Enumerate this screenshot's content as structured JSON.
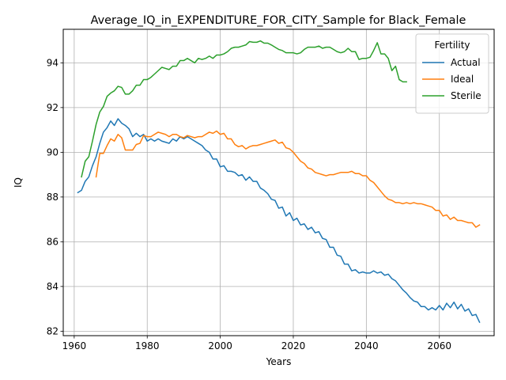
{
  "chart_data": {
    "type": "line",
    "title": "Average_IQ_in_EXPENDITURE_FOR_CITY_Sample for Black_Female",
    "xlabel": "Years",
    "ylabel": "IQ",
    "xlim": [
      1957,
      2075
    ],
    "ylim": [
      81.8,
      95.5
    ],
    "xticks": [
      1960,
      1980,
      2000,
      2020,
      2040,
      2060
    ],
    "yticks": [
      82,
      84,
      86,
      88,
      90,
      92,
      94
    ],
    "grid": true,
    "legend": {
      "title": "Fertility",
      "placement": "top-right"
    },
    "series": [
      {
        "name": "Actual",
        "color": "#1f77b4",
        "points": [
          [
            1961,
            88.2
          ],
          [
            1962,
            88.3
          ],
          [
            1963,
            88.7
          ],
          [
            1964,
            88.9
          ],
          [
            1965,
            89.4
          ],
          [
            1966,
            89.8
          ],
          [
            1967,
            90.4
          ],
          [
            1968,
            90.9
          ],
          [
            1969,
            91.1
          ],
          [
            1970,
            91.4
          ],
          [
            1971,
            91.2
          ],
          [
            1972,
            91.5
          ],
          [
            1973,
            91.3
          ],
          [
            1974,
            91.2
          ],
          [
            1975,
            91.05
          ],
          [
            1976,
            90.7
          ],
          [
            1977,
            90.85
          ],
          [
            1978,
            90.7
          ],
          [
            1979,
            90.8
          ],
          [
            1980,
            90.5
          ],
          [
            1981,
            90.6
          ],
          [
            1982,
            90.5
          ],
          [
            1983,
            90.6
          ],
          [
            1984,
            90.5
          ],
          [
            1985,
            90.45
          ],
          [
            1986,
            90.4
          ],
          [
            1987,
            90.6
          ],
          [
            1988,
            90.5
          ],
          [
            1989,
            90.7
          ],
          [
            1990,
            90.6
          ],
          [
            1991,
            90.7
          ],
          [
            1992,
            90.6
          ],
          [
            1993,
            90.5
          ],
          [
            1994,
            90.4
          ],
          [
            1995,
            90.3
          ],
          [
            1996,
            90.1
          ],
          [
            1997,
            90.0
          ],
          [
            1998,
            89.7
          ],
          [
            1999,
            89.7
          ],
          [
            2000,
            89.35
          ],
          [
            2001,
            89.4
          ],
          [
            2002,
            89.15
          ],
          [
            2003,
            89.15
          ],
          [
            2004,
            89.1
          ],
          [
            2005,
            88.95
          ],
          [
            2006,
            89.0
          ],
          [
            2007,
            88.75
          ],
          [
            2008,
            88.9
          ],
          [
            2009,
            88.7
          ],
          [
            2010,
            88.7
          ],
          [
            2011,
            88.4
          ],
          [
            2012,
            88.3
          ],
          [
            2013,
            88.15
          ],
          [
            2014,
            87.9
          ],
          [
            2015,
            87.85
          ],
          [
            2016,
            87.5
          ],
          [
            2017,
            87.55
          ],
          [
            2018,
            87.15
          ],
          [
            2019,
            87.3
          ],
          [
            2020,
            86.95
          ],
          [
            2021,
            87.05
          ],
          [
            2022,
            86.75
          ],
          [
            2023,
            86.8
          ],
          [
            2024,
            86.55
          ],
          [
            2025,
            86.65
          ],
          [
            2026,
            86.4
          ],
          [
            2027,
            86.45
          ],
          [
            2028,
            86.15
          ],
          [
            2029,
            86.1
          ],
          [
            2030,
            85.75
          ],
          [
            2031,
            85.75
          ],
          [
            2032,
            85.4
          ],
          [
            2033,
            85.35
          ],
          [
            2034,
            85.0
          ],
          [
            2035,
            85.0
          ],
          [
            2036,
            84.7
          ],
          [
            2037,
            84.75
          ],
          [
            2038,
            84.6
          ],
          [
            2039,
            84.65
          ],
          [
            2040,
            84.6
          ],
          [
            2041,
            84.6
          ],
          [
            2042,
            84.7
          ],
          [
            2043,
            84.6
          ],
          [
            2044,
            84.65
          ],
          [
            2045,
            84.5
          ],
          [
            2046,
            84.55
          ],
          [
            2047,
            84.35
          ],
          [
            2048,
            84.25
          ],
          [
            2049,
            84.05
          ],
          [
            2050,
            83.85
          ],
          [
            2051,
            83.7
          ],
          [
            2052,
            83.5
          ],
          [
            2053,
            83.35
          ],
          [
            2054,
            83.3
          ],
          [
            2055,
            83.1
          ],
          [
            2056,
            83.1
          ],
          [
            2057,
            82.95
          ],
          [
            2058,
            83.05
          ],
          [
            2059,
            82.95
          ],
          [
            2060,
            83.15
          ],
          [
            2061,
            82.95
          ],
          [
            2062,
            83.25
          ],
          [
            2063,
            83.05
          ],
          [
            2064,
            83.3
          ],
          [
            2065,
            83.0
          ],
          [
            2066,
            83.2
          ],
          [
            2067,
            82.9
          ],
          [
            2068,
            83.0
          ],
          [
            2069,
            82.7
          ],
          [
            2070,
            82.75
          ],
          [
            2071,
            82.4
          ]
        ]
      },
      {
        "name": "Ideal",
        "color": "#ff7f0e",
        "points": [
          [
            1966,
            88.9
          ],
          [
            1967,
            89.95
          ],
          [
            1968,
            89.95
          ],
          [
            1969,
            90.3
          ],
          [
            1970,
            90.6
          ],
          [
            1971,
            90.5
          ],
          [
            1972,
            90.8
          ],
          [
            1973,
            90.65
          ],
          [
            1974,
            90.1
          ],
          [
            1975,
            90.1
          ],
          [
            1976,
            90.1
          ],
          [
            1977,
            90.35
          ],
          [
            1978,
            90.4
          ],
          [
            1979,
            90.75
          ],
          [
            1980,
            90.7
          ],
          [
            1981,
            90.7
          ],
          [
            1982,
            90.8
          ],
          [
            1983,
            90.9
          ],
          [
            1984,
            90.85
          ],
          [
            1985,
            90.8
          ],
          [
            1986,
            90.7
          ],
          [
            1987,
            90.8
          ],
          [
            1988,
            90.8
          ],
          [
            1989,
            90.7
          ],
          [
            1990,
            90.65
          ],
          [
            1991,
            90.75
          ],
          [
            1992,
            90.7
          ],
          [
            1993,
            90.65
          ],
          [
            1994,
            90.7
          ],
          [
            1995,
            90.7
          ],
          [
            1996,
            90.8
          ],
          [
            1997,
            90.9
          ],
          [
            1998,
            90.85
          ],
          [
            1999,
            90.95
          ],
          [
            2000,
            90.8
          ],
          [
            2001,
            90.85
          ],
          [
            2002,
            90.6
          ],
          [
            2003,
            90.6
          ],
          [
            2004,
            90.35
          ],
          [
            2005,
            90.25
          ],
          [
            2006,
            90.3
          ],
          [
            2007,
            90.15
          ],
          [
            2008,
            90.25
          ],
          [
            2009,
            90.3
          ],
          [
            2010,
            90.3
          ],
          [
            2011,
            90.35
          ],
          [
            2012,
            90.4
          ],
          [
            2013,
            90.45
          ],
          [
            2014,
            90.5
          ],
          [
            2015,
            90.55
          ],
          [
            2016,
            90.4
          ],
          [
            2017,
            90.45
          ],
          [
            2018,
            90.2
          ],
          [
            2019,
            90.15
          ],
          [
            2020,
            90.0
          ],
          [
            2021,
            89.8
          ],
          [
            2022,
            89.6
          ],
          [
            2023,
            89.5
          ],
          [
            2024,
            89.3
          ],
          [
            2025,
            89.25
          ],
          [
            2026,
            89.1
          ],
          [
            2027,
            89.05
          ],
          [
            2028,
            89.0
          ],
          [
            2029,
            88.95
          ],
          [
            2030,
            89.0
          ],
          [
            2031,
            89.0
          ],
          [
            2032,
            89.05
          ],
          [
            2033,
            89.1
          ],
          [
            2034,
            89.1
          ],
          [
            2035,
            89.1
          ],
          [
            2036,
            89.15
          ],
          [
            2037,
            89.05
          ],
          [
            2038,
            89.05
          ],
          [
            2039,
            88.95
          ],
          [
            2040,
            88.95
          ],
          [
            2041,
            88.75
          ],
          [
            2042,
            88.65
          ],
          [
            2043,
            88.45
          ],
          [
            2044,
            88.25
          ],
          [
            2045,
            88.05
          ],
          [
            2046,
            87.9
          ],
          [
            2047,
            87.85
          ],
          [
            2048,
            87.75
          ],
          [
            2049,
            87.75
          ],
          [
            2050,
            87.7
          ],
          [
            2051,
            87.75
          ],
          [
            2052,
            87.7
          ],
          [
            2053,
            87.75
          ],
          [
            2054,
            87.7
          ],
          [
            2055,
            87.7
          ],
          [
            2056,
            87.65
          ],
          [
            2057,
            87.6
          ],
          [
            2058,
            87.55
          ],
          [
            2059,
            87.4
          ],
          [
            2060,
            87.4
          ],
          [
            2061,
            87.15
          ],
          [
            2062,
            87.2
          ],
          [
            2063,
            87.0
          ],
          [
            2064,
            87.1
          ],
          [
            2065,
            86.95
          ],
          [
            2066,
            86.95
          ],
          [
            2067,
            86.9
          ],
          [
            2068,
            86.85
          ],
          [
            2069,
            86.85
          ],
          [
            2070,
            86.65
          ],
          [
            2071,
            86.75
          ]
        ]
      },
      {
        "name": "Sterile",
        "color": "#2ca02c",
        "points": [
          [
            1962,
            88.9
          ],
          [
            1963,
            89.6
          ],
          [
            1964,
            89.8
          ],
          [
            1965,
            90.5
          ],
          [
            1966,
            91.25
          ],
          [
            1967,
            91.8
          ],
          [
            1968,
            92.05
          ],
          [
            1969,
            92.5
          ],
          [
            1970,
            92.65
          ],
          [
            1971,
            92.75
          ],
          [
            1972,
            92.95
          ],
          [
            1973,
            92.9
          ],
          [
            1974,
            92.6
          ],
          [
            1975,
            92.6
          ],
          [
            1976,
            92.75
          ],
          [
            1977,
            93.0
          ],
          [
            1978,
            93.0
          ],
          [
            1979,
            93.25
          ],
          [
            1980,
            93.25
          ],
          [
            1981,
            93.35
          ],
          [
            1982,
            93.5
          ],
          [
            1983,
            93.65
          ],
          [
            1984,
            93.8
          ],
          [
            1985,
            93.75
          ],
          [
            1986,
            93.7
          ],
          [
            1987,
            93.85
          ],
          [
            1988,
            93.85
          ],
          [
            1989,
            94.1
          ],
          [
            1990,
            94.1
          ],
          [
            1991,
            94.2
          ],
          [
            1992,
            94.1
          ],
          [
            1993,
            94.0
          ],
          [
            1994,
            94.2
          ],
          [
            1995,
            94.15
          ],
          [
            1996,
            94.2
          ],
          [
            1997,
            94.3
          ],
          [
            1998,
            94.2
          ],
          [
            1999,
            94.35
          ],
          [
            2000,
            94.35
          ],
          [
            2001,
            94.4
          ],
          [
            2002,
            94.5
          ],
          [
            2003,
            94.65
          ],
          [
            2004,
            94.7
          ],
          [
            2005,
            94.7
          ],
          [
            2006,
            94.75
          ],
          [
            2007,
            94.8
          ],
          [
            2008,
            94.95
          ],
          [
            2009,
            94.92
          ],
          [
            2010,
            94.92
          ],
          [
            2011,
            94.98
          ],
          [
            2012,
            94.88
          ],
          [
            2013,
            94.88
          ],
          [
            2014,
            94.8
          ],
          [
            2015,
            94.7
          ],
          [
            2016,
            94.6
          ],
          [
            2017,
            94.55
          ],
          [
            2018,
            94.45
          ],
          [
            2019,
            94.45
          ],
          [
            2020,
            94.45
          ],
          [
            2021,
            94.4
          ],
          [
            2022,
            94.45
          ],
          [
            2023,
            94.6
          ],
          [
            2024,
            94.7
          ],
          [
            2025,
            94.7
          ],
          [
            2026,
            94.7
          ],
          [
            2027,
            94.75
          ],
          [
            2028,
            94.65
          ],
          [
            2029,
            94.7
          ],
          [
            2030,
            94.7
          ],
          [
            2031,
            94.6
          ],
          [
            2032,
            94.5
          ],
          [
            2033,
            94.45
          ],
          [
            2034,
            94.5
          ],
          [
            2035,
            94.65
          ],
          [
            2036,
            94.5
          ],
          [
            2037,
            94.5
          ],
          [
            2038,
            94.15
          ],
          [
            2039,
            94.2
          ],
          [
            2040,
            94.2
          ],
          [
            2041,
            94.25
          ],
          [
            2042,
            94.55
          ],
          [
            2043,
            94.9
          ],
          [
            2044,
            94.4
          ],
          [
            2045,
            94.4
          ],
          [
            2046,
            94.2
          ],
          [
            2047,
            93.65
          ],
          [
            2048,
            93.85
          ],
          [
            2049,
            93.25
          ],
          [
            2050,
            93.15
          ],
          [
            2051,
            93.15
          ]
        ]
      }
    ]
  }
}
